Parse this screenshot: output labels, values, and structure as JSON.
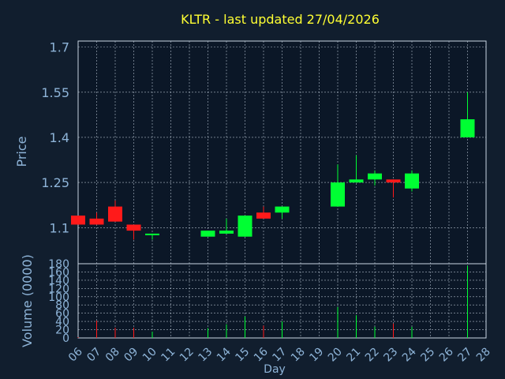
{
  "chart_data": [
    {
      "type": "candlestick",
      "title": "KLTR - last updated 27/04/2026",
      "ylabel": "Price",
      "ylim": [
        0.98,
        1.72
      ],
      "yticks": [
        "1.7",
        "1.55",
        "1.4",
        "1.25",
        "1.1"
      ],
      "ytick_values": [
        1.7,
        1.55,
        1.4,
        1.25,
        1.1
      ],
      "grid": true,
      "colors": {
        "up": "#00ff33",
        "down": "#ff1a1a",
        "title": "#ffff33",
        "axis_text": "#8eb4d8",
        "background": "#111e2e",
        "plot_bg": "#0b1727"
      },
      "candles": [
        {
          "x": 6.0,
          "open": 1.14,
          "high": 1.14,
          "low": 1.11,
          "close": 1.11,
          "dir": "down"
        },
        {
          "x": 7.0,
          "open": 1.13,
          "high": 1.15,
          "low": 1.11,
          "close": 1.11,
          "dir": "down"
        },
        {
          "x": 8.0,
          "open": 1.17,
          "high": 1.19,
          "low": 1.12,
          "close": 1.12,
          "dir": "down"
        },
        {
          "x": 9.0,
          "open": 1.11,
          "high": 1.11,
          "low": 1.06,
          "close": 1.09,
          "dir": "down"
        },
        {
          "x": 10.0,
          "open": 1.08,
          "high": 1.08,
          "low": 1.06,
          "close": 1.08,
          "dir": "up"
        },
        {
          "x": 13.0,
          "open": 1.07,
          "high": 1.09,
          "low": 1.07,
          "close": 1.09,
          "dir": "up"
        },
        {
          "x": 14.0,
          "open": 1.08,
          "high": 1.13,
          "low": 1.08,
          "close": 1.09,
          "dir": "up"
        },
        {
          "x": 15.0,
          "open": 1.07,
          "high": 1.14,
          "low": 1.07,
          "close": 1.14,
          "dir": "up"
        },
        {
          "x": 16.0,
          "open": 1.15,
          "high": 1.17,
          "low": 1.13,
          "close": 1.13,
          "dir": "down"
        },
        {
          "x": 17.0,
          "open": 1.15,
          "high": 1.17,
          "low": 1.13,
          "close": 1.17,
          "dir": "up"
        },
        {
          "x": 20.0,
          "open": 1.17,
          "high": 1.31,
          "low": 1.17,
          "close": 1.25,
          "dir": "up"
        },
        {
          "x": 21.0,
          "open": 1.25,
          "high": 1.34,
          "low": 1.25,
          "close": 1.26,
          "dir": "up"
        },
        {
          "x": 22.0,
          "open": 1.26,
          "high": 1.29,
          "low": 1.24,
          "close": 1.28,
          "dir": "up"
        },
        {
          "x": 23.0,
          "open": 1.26,
          "high": 1.26,
          "low": 1.2,
          "close": 1.25,
          "dir": "down"
        },
        {
          "x": 24.0,
          "open": 1.23,
          "high": 1.29,
          "low": 1.22,
          "close": 1.28,
          "dir": "up"
        },
        {
          "x": 27.0,
          "open": 1.4,
          "high": 1.55,
          "low": 1.4,
          "close": 1.46,
          "dir": "up"
        }
      ]
    },
    {
      "type": "bar",
      "xlabel": "Day",
      "ylabel": "Volume (0000)",
      "ylim": [
        0,
        180
      ],
      "yticks": [
        "180",
        "160",
        "140",
        "120",
        "100",
        "80",
        "60",
        "40",
        "20",
        "0"
      ],
      "ytick_values": [
        180,
        160,
        140,
        120,
        100,
        80,
        60,
        40,
        20,
        0
      ],
      "xticks": [
        "06",
        "07",
        "08",
        "09",
        "10",
        "11",
        "12",
        "13",
        "14",
        "15",
        "16",
        "17",
        "18",
        "19",
        "20",
        "21",
        "22",
        "23",
        "24",
        "25",
        "26",
        "27",
        "28"
      ],
      "grid": true,
      "bars": [
        {
          "x": 6.0,
          "value": 2,
          "dir": "down"
        },
        {
          "x": 7.0,
          "value": 42,
          "dir": "down"
        },
        {
          "x": 8.0,
          "value": 25,
          "dir": "down"
        },
        {
          "x": 9.0,
          "value": 25,
          "dir": "down"
        },
        {
          "x": 10.0,
          "value": 15,
          "dir": "up"
        },
        {
          "x": 13.0,
          "value": 24,
          "dir": "up"
        },
        {
          "x": 14.0,
          "value": 33,
          "dir": "up"
        },
        {
          "x": 15.0,
          "value": 52,
          "dir": "up"
        },
        {
          "x": 16.0,
          "value": 30,
          "dir": "down"
        },
        {
          "x": 17.0,
          "value": 40,
          "dir": "up"
        },
        {
          "x": 20.0,
          "value": 75,
          "dir": "up"
        },
        {
          "x": 21.0,
          "value": 55,
          "dir": "up"
        },
        {
          "x": 22.0,
          "value": 27,
          "dir": "up"
        },
        {
          "x": 23.0,
          "value": 35,
          "dir": "down"
        },
        {
          "x": 24.0,
          "value": 27,
          "dir": "up"
        },
        {
          "x": 27.0,
          "value": 175,
          "dir": "up"
        }
      ]
    }
  ]
}
